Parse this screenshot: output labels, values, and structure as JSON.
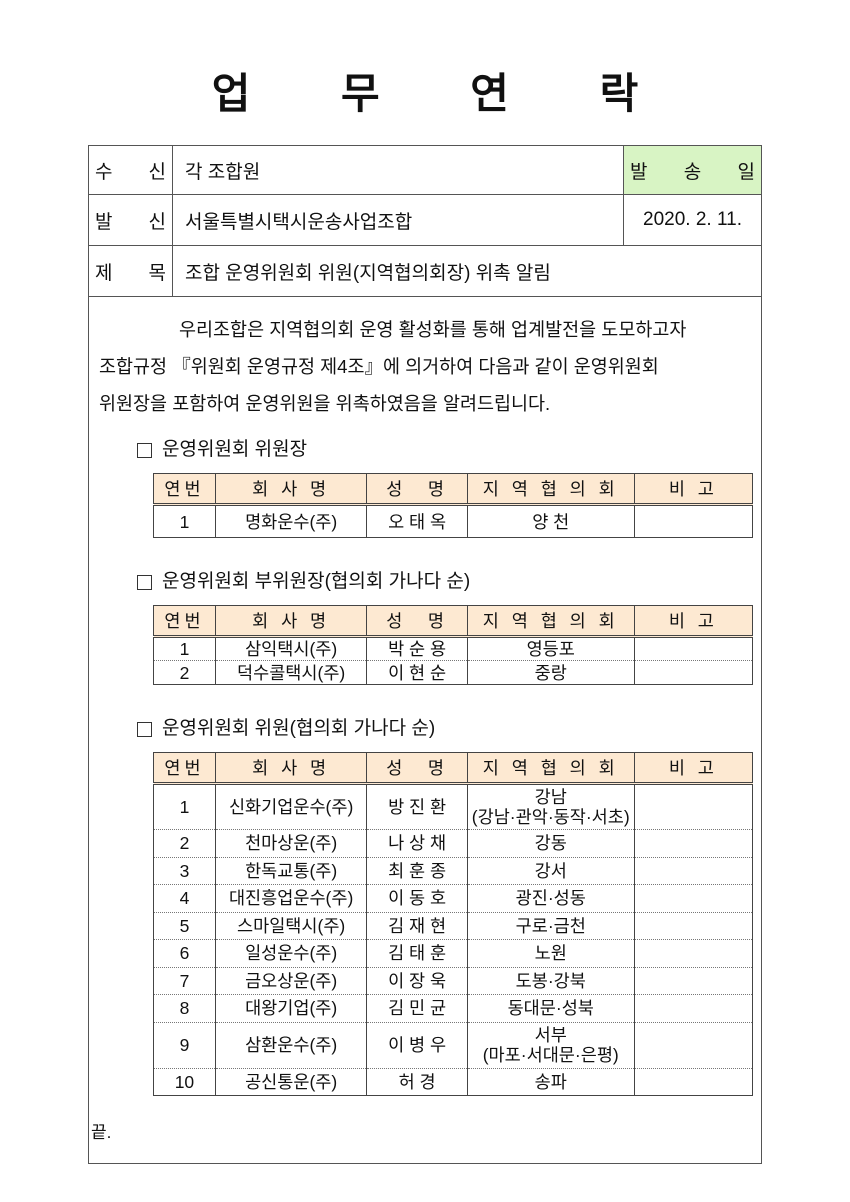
{
  "title": "업 무 연 락",
  "header": {
    "recipient_label": [
      "수",
      "신"
    ],
    "recipient": "각 조합원",
    "sender_label": [
      "발",
      "신"
    ],
    "sender": "서울특별시택시운송사업조합",
    "subject_label": [
      "제",
      "목"
    ],
    "subject": "조합 운영위원회 위원(지역협의회장) 위촉 알림",
    "send_date_label": [
      "발",
      "송",
      "일"
    ],
    "send_date": "2020. 2. 11.",
    "send_date_bg": "#d8f4c4"
  },
  "body": {
    "lines": [
      "우리조합은 지역협의회 운영 활성화를 통해 업계발전을 도모하고자",
      "조합규정 『위원회 운영규정 제4조』에 의거하여 다음과 같이 운영위원회",
      "위원장을 포함하여 운영위원을 위촉하였음을 알려드립니다."
    ]
  },
  "columns": [
    "연번",
    "회 사 명",
    "성　명",
    "지 역 협 의 회",
    "비 고"
  ],
  "header_bg": "#fde9d2",
  "sections": [
    {
      "title": "운영위원회 위원장",
      "rows": [
        [
          "1",
          "명화운수(주)",
          "오 태 옥",
          "양 천",
          ""
        ]
      ]
    },
    {
      "title": "운영위원회 부위원장(협의회 가나다 순)",
      "rows": [
        [
          "1",
          "삼익택시(주)",
          "박 순 용",
          "영등포",
          ""
        ],
        [
          "2",
          "덕수콜택시(주)",
          "이 현 순",
          "중랑",
          ""
        ]
      ]
    },
    {
      "title": "운영위원회 위원(협의회 가나다 순)",
      "rows": [
        [
          "1",
          "신화기업운수(주)",
          "방 진 환",
          "강남\n(강남·관악·동작·서초)",
          ""
        ],
        [
          "2",
          "천마상운(주)",
          "나 상 채",
          "강동",
          ""
        ],
        [
          "3",
          "한독교통(주)",
          "최 훈 종",
          "강서",
          ""
        ],
        [
          "4",
          "대진흥업운수(주)",
          "이 동 호",
          "광진·성동",
          ""
        ],
        [
          "5",
          "스마일택시(주)",
          "김 재 현",
          "구로·금천",
          ""
        ],
        [
          "6",
          "일성운수(주)",
          "김 태 훈",
          "노원",
          ""
        ],
        [
          "7",
          "금오상운(주)",
          "이 장 욱",
          "도봉·강북",
          ""
        ],
        [
          "8",
          "대왕기업(주)",
          "김 민 균",
          "동대문·성북",
          ""
        ],
        [
          "9",
          "삼환운수(주)",
          "이 병 우",
          "서부\n(마포·서대문·은평)",
          ""
        ],
        [
          "10",
          "공신통운(주)",
          "허 경",
          "송파",
          ""
        ]
      ]
    }
  ],
  "end_mark": "끝."
}
